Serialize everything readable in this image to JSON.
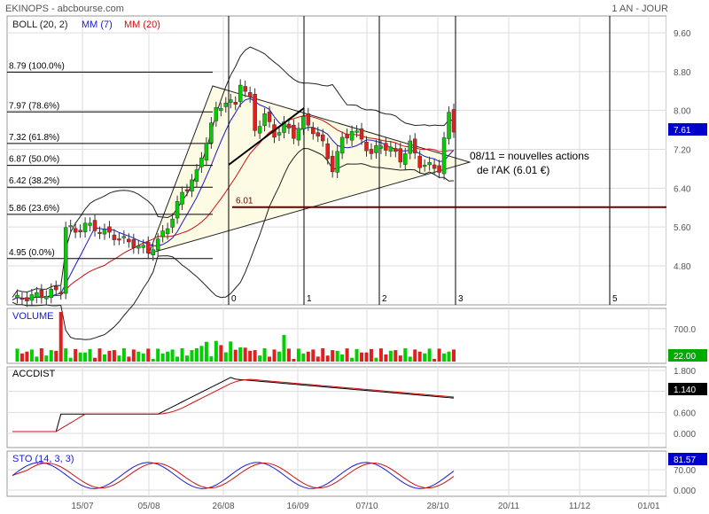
{
  "header": {
    "title": "EKINOPS - abcbourse.com",
    "period": "1 AN - JOUR"
  },
  "colors": {
    "up": "#00d000",
    "down": "#e02020",
    "boll": "#202020",
    "mm7": "#1a1acc",
    "mm20": "#cc1010",
    "fib": "#000000",
    "support": "#6b0000",
    "triangle_fill": "#fdfbe4",
    "value_box": "#0000cc",
    "vol_box": "#00aa00",
    "last_box_black": "#000000"
  },
  "chart_data": [
    {
      "type": "candlestick",
      "panel": "price",
      "legend": [
        {
          "label": "BOLL (20, 2)",
          "color": "#202020"
        },
        {
          "label": "MM (7)",
          "color": "#1a1acc"
        },
        {
          "label": "MM (20)",
          "color": "#cc1010"
        }
      ],
      "yticks": [
        "9.60",
        "8.80",
        "8.00",
        "7.20",
        "6.40",
        "5.60",
        "4.80"
      ],
      "ytick_values": [
        9.6,
        8.8,
        8.0,
        7.2,
        6.4,
        5.6,
        4.8
      ],
      "ylim": [
        4.0,
        10.0
      ],
      "last_value": "7.61",
      "fibonacci": [
        {
          "label": "8.79  (100.0%)",
          "value": 8.79
        },
        {
          "label": "7.97  (78.6%)",
          "value": 7.97
        },
        {
          "label": "7.32  (61.8%)",
          "value": 7.32
        },
        {
          "label": "6.87  (50.0%)",
          "value": 6.87
        },
        {
          "label": "6.42  (38.2%)",
          "value": 6.42
        },
        {
          "label": "5.86  (23.6%)",
          "value": 5.86
        },
        {
          "label": "4.95  (0.0%)",
          "value": 4.95
        }
      ],
      "support": {
        "label": "6.01",
        "value": 6.01
      },
      "markers": [
        "0",
        "1",
        "2",
        "3",
        "5"
      ],
      "annotation": [
        "08/11 = nouvelles actions",
        "de l'AK (6.01 €)"
      ]
    },
    {
      "type": "bar",
      "panel": "volume",
      "title": "VOLUME",
      "yticks": [
        "700.0"
      ],
      "last_value": "22.00"
    },
    {
      "type": "line",
      "panel": "accdist",
      "title": "ACCDIST",
      "yticks": [
        "1.800",
        "1.200",
        "0.600",
        "0.000"
      ],
      "ytick_values": [
        1.8,
        1.2,
        0.6,
        0.0
      ],
      "last_value": "1.140"
    },
    {
      "type": "line",
      "panel": "stochastic",
      "title": "STO (14, 3, 3)",
      "yticks": [
        "70.00",
        "0.000"
      ],
      "ytick_values": [
        70,
        0
      ],
      "last_value": "81.57"
    }
  ],
  "xaxis": {
    "ticks": [
      "15/07",
      "05/08",
      "26/08",
      "16/09",
      "07/10",
      "28/10",
      "20/11",
      "11/12",
      "01/01"
    ]
  }
}
